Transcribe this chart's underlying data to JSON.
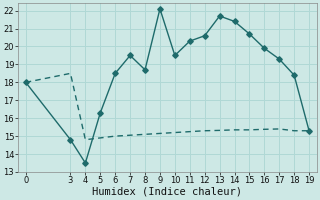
{
  "xlabel": "Humidex (Indice chaleur)",
  "bg_color": "#cde8e5",
  "grid_color": "#b0d8d5",
  "line_color": "#1e6b6b",
  "xlim": [
    -0.5,
    19.5
  ],
  "ylim": [
    13,
    22.4
  ],
  "xticks": [
    0,
    3,
    4,
    5,
    6,
    7,
    8,
    9,
    10,
    11,
    12,
    13,
    14,
    15,
    16,
    17,
    18,
    19
  ],
  "yticks": [
    13,
    14,
    15,
    16,
    17,
    18,
    19,
    20,
    21,
    22
  ],
  "line1_x": [
    0,
    3,
    4,
    5,
    6,
    7,
    8,
    9,
    10,
    11,
    12,
    13,
    14,
    15,
    16,
    17,
    18,
    19
  ],
  "line1_y": [
    18.0,
    14.8,
    13.5,
    16.3,
    18.5,
    19.5,
    18.7,
    22.1,
    19.5,
    20.3,
    20.6,
    21.7,
    21.4,
    20.7,
    19.9,
    19.3,
    18.4,
    15.3
  ],
  "line2_x": [
    0,
    3,
    4,
    5,
    6,
    7,
    8,
    9,
    10,
    11,
    12,
    13,
    14,
    15,
    16,
    17,
    18,
    19
  ],
  "line2_y": [
    18.0,
    18.5,
    14.8,
    14.9,
    15.0,
    15.05,
    15.1,
    15.15,
    15.2,
    15.25,
    15.3,
    15.32,
    15.35,
    15.35,
    15.38,
    15.4,
    15.3,
    15.3
  ],
  "marker": "D",
  "marker_size": 2.8,
  "line_width": 1.0,
  "tick_fontsize": 6,
  "xlabel_fontsize": 7.5,
  "white_grid_linewidth": 0.7
}
